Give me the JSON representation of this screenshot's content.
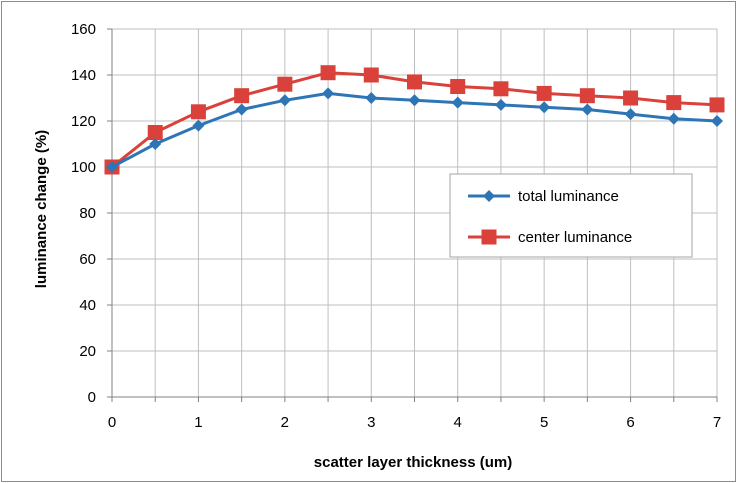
{
  "chart_data": {
    "type": "line",
    "title": "",
    "xlabel": "scatter layer thickness (um)",
    "ylabel": "luminance change (%)",
    "xlim": [
      0,
      7
    ],
    "ylim": [
      0,
      160
    ],
    "x_ticks": [
      0,
      1,
      2,
      3,
      4,
      5,
      6,
      7
    ],
    "y_ticks": [
      0,
      20,
      40,
      60,
      80,
      100,
      120,
      140,
      160
    ],
    "grid": true,
    "legend_position": "right",
    "x": [
      0,
      0.5,
      1,
      1.5,
      2,
      2.5,
      3,
      3.5,
      4,
      4.5,
      5,
      5.5,
      6,
      6.5,
      7
    ],
    "series": [
      {
        "name": "total luminance",
        "color": "#2e75b6",
        "marker": "diamond",
        "values": [
          100,
          110,
          118,
          125,
          129,
          132,
          130,
          129,
          128,
          127,
          126,
          125,
          123,
          121,
          120
        ]
      },
      {
        "name": "center luminance",
        "color": "#d9413a",
        "marker": "square",
        "values": [
          100,
          115,
          124,
          131,
          136,
          141,
          140,
          137,
          135,
          134,
          132,
          131,
          130,
          128,
          127
        ]
      }
    ]
  }
}
